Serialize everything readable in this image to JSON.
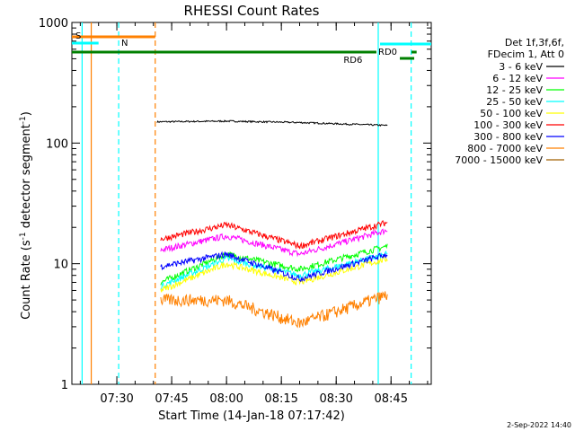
{
  "chart_data": {
    "type": "line",
    "title": "RHESSI Count Rates",
    "xlabel": "Start Time (14-Jan-18 07:17:42)",
    "ylabel_main": "Count Rate (s",
    "ylabel_sup1": "-1",
    "ylabel_mid": " detector segment",
    "ylabel_sup2": "-1",
    "ylabel_end": ")",
    "yscale": "log",
    "ylim": [
      1,
      1000
    ],
    "xlim_minutes": [
      "07:17:42",
      "08:56:00"
    ],
    "x_ticks": [
      "07:30",
      "07:45",
      "08:00",
      "08:15",
      "08:30",
      "08:45"
    ],
    "y_ticks": [
      "1",
      "10",
      "100",
      "1000"
    ],
    "grid": false,
    "legend_position": "right",
    "legend_header": [
      "Det 1f,3f,6f,",
      "FDecim 1, Att 0"
    ],
    "series": [
      {
        "name": "3 - 6 keV",
        "color": "#000000",
        "data": [
          [
            "07:41",
            150
          ],
          [
            "08:00",
            152
          ],
          [
            "08:20",
            148
          ],
          [
            "08:44",
            140
          ]
        ]
      },
      {
        "name": "6 - 12 keV",
        "color": "#ff00ff",
        "data": [
          [
            "07:42",
            13
          ],
          [
            "08:00",
            17
          ],
          [
            "08:20",
            12
          ],
          [
            "08:44",
            19
          ]
        ]
      },
      {
        "name": "12 - 25 keV",
        "color": "#00ff00",
        "data": [
          [
            "07:42",
            7
          ],
          [
            "08:00",
            12
          ],
          [
            "08:20",
            9
          ],
          [
            "08:44",
            14
          ]
        ]
      },
      {
        "name": "25 - 50 keV",
        "color": "#00ffff",
        "data": [
          [
            "07:42",
            6.5
          ],
          [
            "08:00",
            11
          ],
          [
            "08:20",
            8
          ],
          [
            "08:44",
            12
          ]
        ]
      },
      {
        "name": "50 - 100 keV",
        "color": "#ffff00",
        "data": [
          [
            "07:42",
            6
          ],
          [
            "08:00",
            10
          ],
          [
            "08:20",
            7
          ],
          [
            "08:44",
            11
          ]
        ]
      },
      {
        "name": "100 - 300 keV",
        "color": "#ff0000",
        "data": [
          [
            "07:42",
            16
          ],
          [
            "08:00",
            21
          ],
          [
            "08:20",
            14
          ],
          [
            "08:44",
            22
          ]
        ]
      },
      {
        "name": "300 - 800 keV",
        "color": "#0000ff",
        "data": [
          [
            "07:42",
            9.5
          ],
          [
            "08:00",
            12
          ],
          [
            "08:20",
            7.5
          ],
          [
            "08:44",
            12
          ]
        ]
      },
      {
        "name": "800 - 7000 keV",
        "color": "#ff8000",
        "data": [
          [
            "07:42",
            5
          ],
          [
            "08:00",
            5
          ],
          [
            "08:20",
            3.2
          ],
          [
            "08:44",
            5.5
          ]
        ]
      },
      {
        "name": "7000 - 15000 keV",
        "color": "#a06000",
        "data": []
      }
    ],
    "flags": [
      {
        "label": "S",
        "color": "#ff8000",
        "range": [
          "07:17:42",
          "07:40:30"
        ]
      },
      {
        "label": "N",
        "color": "#00ffff",
        "range": [
          "07:17:42",
          "07:25:00"
        ]
      },
      {
        "label": "RD0",
        "color": "#008000",
        "range": [
          "08:42:00",
          "08:56:00"
        ]
      },
      {
        "label": "RD6",
        "color": "#008000",
        "range": [
          "07:17:42",
          "08:50:00"
        ]
      }
    ],
    "vertical_markers": [
      {
        "time": "07:20:30",
        "color": "#00ffff",
        "style": "solid"
      },
      {
        "time": "07:23:00",
        "color": "#ff8000",
        "style": "solid"
      },
      {
        "time": "07:30:30",
        "color": "#00ffff",
        "style": "dashed"
      },
      {
        "time": "07:40:30",
        "color": "#ff8000",
        "style": "dashed"
      },
      {
        "time": "08:41:30",
        "color": "#00ffff",
        "style": "solid"
      },
      {
        "time": "08:50:30",
        "color": "#00ffff",
        "style": "dashed"
      }
    ]
  },
  "footer": {
    "timestamp": "2-Sep-2022 14:40"
  }
}
